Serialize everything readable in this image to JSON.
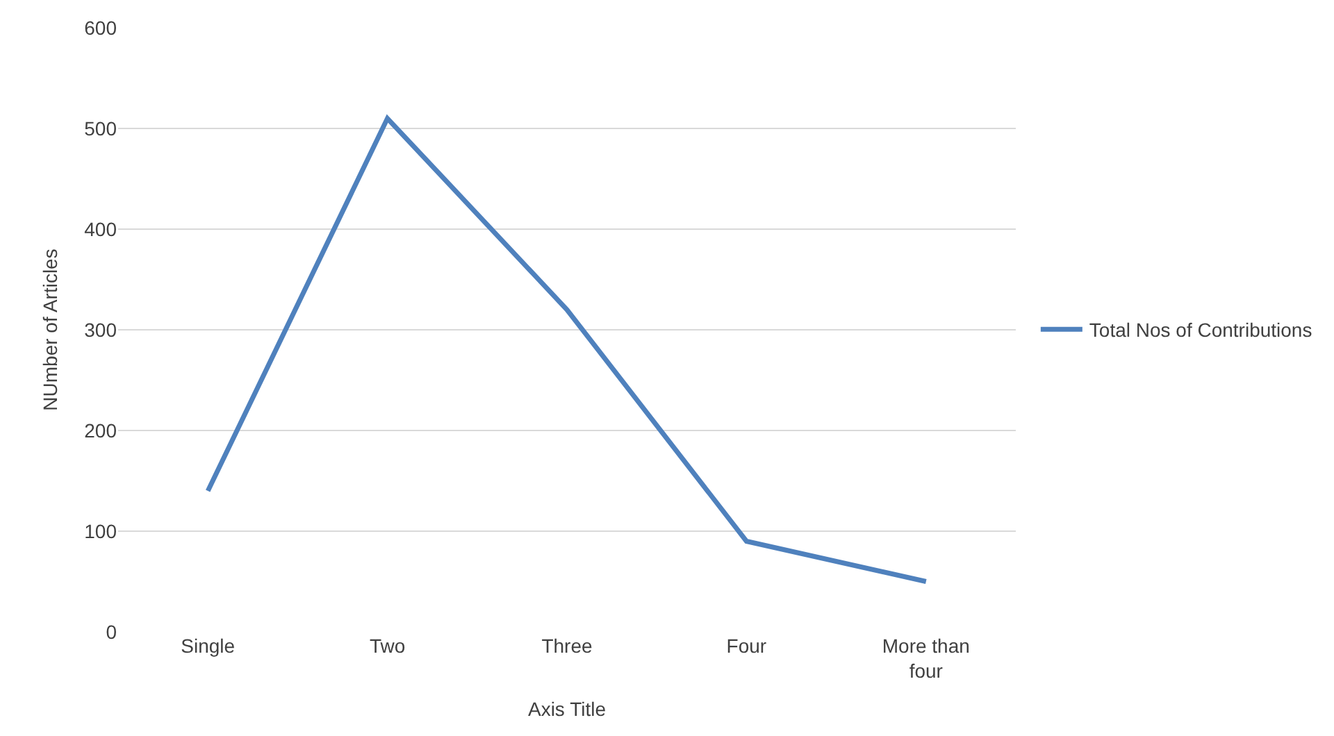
{
  "chart_data": {
    "type": "line",
    "categories": [
      "Single",
      "Two",
      "Three",
      "Four",
      "More than four"
    ],
    "series": [
      {
        "name": "Total Nos of Contributions",
        "color": "#4f81bd",
        "values": [
          140,
          510,
          320,
          90,
          50
        ]
      }
    ],
    "xlabel": "Axis Title",
    "ylabel": "NUmber of Articles",
    "ylim": [
      0,
      600
    ],
    "yticks": [
      0,
      100,
      200,
      300,
      400,
      500,
      600
    ],
    "grid": "y",
    "legend": "right",
    "marker": "none",
    "line_style": "solid"
  }
}
